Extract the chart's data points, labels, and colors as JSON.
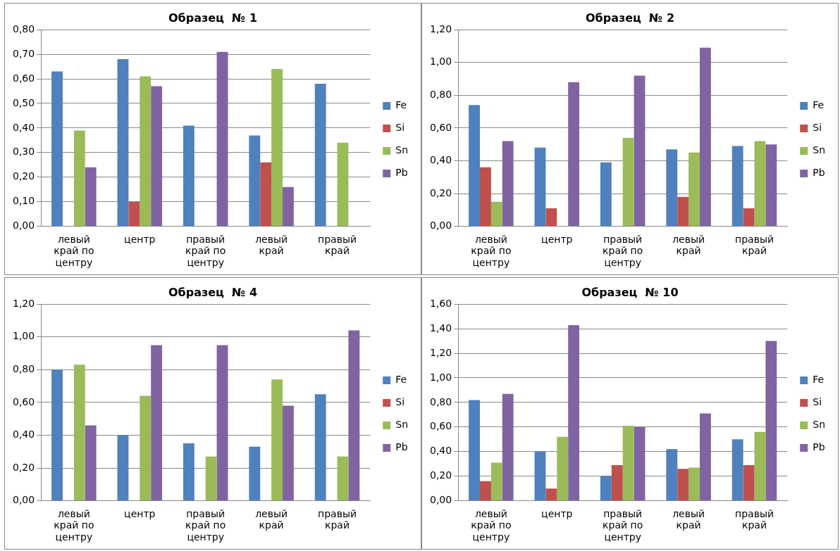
{
  "chart_data": [
    {
      "type": "bar",
      "title": "Образец  № 1",
      "categories": [
        "левый край по центру",
        "центр",
        "правый край по центру",
        "левый край",
        "правый край"
      ],
      "series": [
        {
          "name": "Fe",
          "color": "#4f81bd",
          "values": [
            0.63,
            0.68,
            0.41,
            0.37,
            0.58
          ]
        },
        {
          "name": "Si",
          "color": "#c0504d",
          "values": [
            null,
            0.1,
            null,
            0.26,
            null
          ]
        },
        {
          "name": "Sn",
          "color": "#9bbb59",
          "values": [
            0.39,
            0.61,
            null,
            0.64,
            0.34
          ]
        },
        {
          "name": "Pb",
          "color": "#8064a2",
          "values": [
            0.24,
            0.57,
            0.71,
            0.16,
            null
          ]
        }
      ],
      "ylim": [
        0,
        0.8
      ],
      "yticks": [
        {
          "value": 0,
          "label": "0,00"
        },
        {
          "value": 0.1,
          "label": "0,10"
        },
        {
          "value": 0.2,
          "label": "0,20"
        },
        {
          "value": 0.3,
          "label": "0,30"
        },
        {
          "value": 0.4,
          "label": "0,40"
        },
        {
          "value": 0.5,
          "label": "0,50"
        },
        {
          "value": 0.6,
          "label": "0,60"
        },
        {
          "value": 0.7,
          "label": "0,70"
        },
        {
          "value": 0.8,
          "label": "0,80"
        }
      ],
      "grid": "y",
      "legend": "right"
    },
    {
      "type": "bar",
      "title": "Образец  № 2",
      "categories": [
        "левый край по центру",
        "центр",
        "правый край по центру",
        "левый край",
        "правый край"
      ],
      "series": [
        {
          "name": "Fe",
          "color": "#4f81bd",
          "values": [
            0.74,
            0.48,
            0.39,
            0.47,
            0.49
          ]
        },
        {
          "name": "Si",
          "color": "#c0504d",
          "values": [
            0.36,
            0.11,
            null,
            0.18,
            0.11
          ]
        },
        {
          "name": "Sn",
          "color": "#9bbb59",
          "values": [
            0.15,
            null,
            0.54,
            0.45,
            0.52
          ]
        },
        {
          "name": "Pb",
          "color": "#8064a2",
          "values": [
            0.52,
            0.88,
            0.92,
            1.09,
            0.5
          ]
        }
      ],
      "ylim": [
        0,
        1.2
      ],
      "yticks": [
        {
          "value": 0,
          "label": "0,00"
        },
        {
          "value": 0.2,
          "label": "0,20"
        },
        {
          "value": 0.4,
          "label": "0,40"
        },
        {
          "value": 0.6,
          "label": "0,60"
        },
        {
          "value": 0.8,
          "label": "0,80"
        },
        {
          "value": 1.0,
          "label": "1,00"
        },
        {
          "value": 1.2,
          "label": "1,20"
        }
      ],
      "grid": "y",
      "legend": "right"
    },
    {
      "type": "bar",
      "title": "Образец  № 4",
      "categories": [
        "левый край по центру",
        "центр",
        "правый край по центру",
        "левый край",
        "правый край"
      ],
      "series": [
        {
          "name": "Fe",
          "color": "#4f81bd",
          "values": [
            0.8,
            0.4,
            0.35,
            0.33,
            0.65
          ]
        },
        {
          "name": "Si",
          "color": "#c0504d",
          "values": [
            null,
            null,
            null,
            null,
            null
          ]
        },
        {
          "name": "Sn",
          "color": "#9bbb59",
          "values": [
            0.83,
            0.64,
            0.27,
            0.74,
            0.27
          ]
        },
        {
          "name": "Pb",
          "color": "#8064a2",
          "values": [
            0.46,
            0.95,
            0.95,
            0.58,
            1.04
          ]
        }
      ],
      "ylim": [
        0,
        1.2
      ],
      "yticks": [
        {
          "value": 0,
          "label": "0,00"
        },
        {
          "value": 0.2,
          "label": "0,20"
        },
        {
          "value": 0.4,
          "label": "0,40"
        },
        {
          "value": 0.6,
          "label": "0,60"
        },
        {
          "value": 0.8,
          "label": "0,80"
        },
        {
          "value": 1.0,
          "label": "1,00"
        },
        {
          "value": 1.2,
          "label": "1,20"
        }
      ],
      "grid": "y",
      "legend": "right"
    },
    {
      "type": "bar",
      "title": "Образец  № 10",
      "categories": [
        "левый край по центру",
        "центр",
        "правый край по центру",
        "левый край",
        "правый край"
      ],
      "series": [
        {
          "name": "Fe",
          "color": "#4f81bd",
          "values": [
            0.82,
            0.4,
            0.2,
            0.42,
            0.5
          ]
        },
        {
          "name": "Si",
          "color": "#c0504d",
          "values": [
            0.16,
            0.1,
            0.29,
            0.26,
            0.29
          ]
        },
        {
          "name": "Sn",
          "color": "#9bbb59",
          "values": [
            0.31,
            0.52,
            0.61,
            0.27,
            0.56
          ]
        },
        {
          "name": "Pb",
          "color": "#8064a2",
          "values": [
            0.87,
            1.43,
            0.6,
            0.71,
            1.3
          ]
        }
      ],
      "ylim": [
        0,
        1.6
      ],
      "yticks": [
        {
          "value": 0,
          "label": "0,00"
        },
        {
          "value": 0.2,
          "label": "0,20"
        },
        {
          "value": 0.4,
          "label": "0,40"
        },
        {
          "value": 0.6,
          "label": "0,60"
        },
        {
          "value": 0.8,
          "label": "0,80"
        },
        {
          "value": 1.0,
          "label": "1,00"
        },
        {
          "value": 1.2,
          "label": "1,20"
        },
        {
          "value": 1.4,
          "label": "1,40"
        },
        {
          "value": 1.6,
          "label": "1,60"
        }
      ],
      "grid": "y",
      "legend": "right"
    }
  ]
}
